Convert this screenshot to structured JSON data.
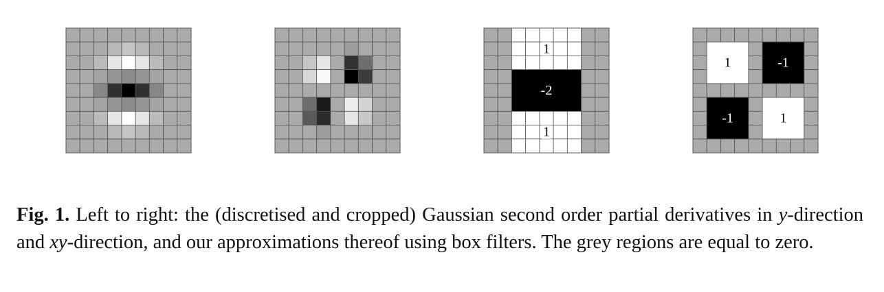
{
  "figure": {
    "panels": [
      {
        "name": "gaussian-dyy",
        "rows": 9,
        "cols": 9,
        "grid": [
          [
            "#aaaaaa",
            "#aaaaaa",
            "#aaaaaa",
            "#aaaaaa",
            "#aaaaaa",
            "#aaaaaa",
            "#aaaaaa",
            "#aaaaaa",
            "#aaaaaa"
          ],
          [
            "#aaaaaa",
            "#aaaaaa",
            "#aaaaaa",
            "#b8b8b8",
            "#c4c4c4",
            "#b8b8b8",
            "#aaaaaa",
            "#aaaaaa",
            "#aaaaaa"
          ],
          [
            "#aaaaaa",
            "#aaaaaa",
            "#bbbbbb",
            "#e6e6e6",
            "#ffffff",
            "#e6e6e6",
            "#bbbbbb",
            "#aaaaaa",
            "#aaaaaa"
          ],
          [
            "#aaaaaa",
            "#aaaaaa",
            "#a3a3a3",
            "#959595",
            "#8c8c8c",
            "#959595",
            "#a3a3a3",
            "#aaaaaa",
            "#aaaaaa"
          ],
          [
            "#aaaaaa",
            "#aaaaaa",
            "#878787",
            "#303030",
            "#000000",
            "#303030",
            "#878787",
            "#aaaaaa",
            "#aaaaaa"
          ],
          [
            "#aaaaaa",
            "#aaaaaa",
            "#a3a3a3",
            "#959595",
            "#8c8c8c",
            "#959595",
            "#a3a3a3",
            "#aaaaaa",
            "#aaaaaa"
          ],
          [
            "#aaaaaa",
            "#aaaaaa",
            "#bbbbbb",
            "#e6e6e6",
            "#ffffff",
            "#e6e6e6",
            "#bbbbbb",
            "#aaaaaa",
            "#aaaaaa"
          ],
          [
            "#aaaaaa",
            "#aaaaaa",
            "#aaaaaa",
            "#b8b8b8",
            "#c4c4c4",
            "#b8b8b8",
            "#aaaaaa",
            "#aaaaaa",
            "#aaaaaa"
          ],
          [
            "#aaaaaa",
            "#aaaaaa",
            "#aaaaaa",
            "#aaaaaa",
            "#aaaaaa",
            "#aaaaaa",
            "#aaaaaa",
            "#aaaaaa",
            "#aaaaaa"
          ]
        ],
        "blocks": []
      },
      {
        "name": "gaussian-dxy",
        "rows": 9,
        "cols": 9,
        "grid": [
          [
            "#aaaaaa",
            "#aaaaaa",
            "#aaaaaa",
            "#aaaaaa",
            "#aaaaaa",
            "#aaaaaa",
            "#aaaaaa",
            "#aaaaaa",
            "#aaaaaa"
          ],
          [
            "#aaaaaa",
            "#aaaaaa",
            "#aaaaaa",
            "#aaaaaa",
            "#aaaaaa",
            "#9c9c9c",
            "#aaaaaa",
            "#aaaaaa",
            "#aaaaaa"
          ],
          [
            "#aaaaaa",
            "#aaaaaa",
            "#c6c6c6",
            "#e6e6e6",
            "#aaaaaa",
            "#323232",
            "#6e6e6e",
            "#aaaaaa",
            "#aaaaaa"
          ],
          [
            "#aaaaaa",
            "#aaaaaa",
            "#d8d8d8",
            "#f8f8f8",
            "#aaaaaa",
            "#000000",
            "#3c3c3c",
            "#aaaaaa",
            "#aaaaaa"
          ],
          [
            "#aaaaaa",
            "#aaaaaa",
            "#aaaaaa",
            "#aaaaaa",
            "#aaaaaa",
            "#aaaaaa",
            "#aaaaaa",
            "#aaaaaa",
            "#aaaaaa"
          ],
          [
            "#aaaaaa",
            "#aaaaaa",
            "#6e6e6e",
            "#1a1a1a",
            "#aaaaaa",
            "#eeeeee",
            "#d4d4d4",
            "#aaaaaa",
            "#aaaaaa"
          ],
          [
            "#aaaaaa",
            "#aaaaaa",
            "#5a5a5a",
            "#2a2a2a",
            "#aaaaaa",
            "#e6e6e6",
            "#c8c8c8",
            "#aaaaaa",
            "#aaaaaa"
          ],
          [
            "#aaaaaa",
            "#aaaaaa",
            "#aaaaaa",
            "#9c9c9c",
            "#aaaaaa",
            "#aaaaaa",
            "#aaaaaa",
            "#aaaaaa",
            "#aaaaaa"
          ],
          [
            "#aaaaaa",
            "#aaaaaa",
            "#aaaaaa",
            "#aaaaaa",
            "#aaaaaa",
            "#aaaaaa",
            "#aaaaaa",
            "#aaaaaa",
            "#aaaaaa"
          ]
        ],
        "blocks": []
      },
      {
        "name": "box-filter-dyy",
        "rows": 9,
        "cols": 9,
        "grid": [
          [
            "#aaaaaa",
            "#aaaaaa",
            "#ffffff",
            "#ffffff",
            "#ffffff",
            "#ffffff",
            "#ffffff",
            "#aaaaaa",
            "#aaaaaa"
          ],
          [
            "#aaaaaa",
            "#aaaaaa",
            "#ffffff",
            "#ffffff",
            "#ffffff",
            "#ffffff",
            "#ffffff",
            "#aaaaaa",
            "#aaaaaa"
          ],
          [
            "#aaaaaa",
            "#aaaaaa",
            "#ffffff",
            "#ffffff",
            "#ffffff",
            "#ffffff",
            "#ffffff",
            "#aaaaaa",
            "#aaaaaa"
          ],
          [
            "#aaaaaa",
            "#aaaaaa",
            "#000000",
            "#000000",
            "#000000",
            "#000000",
            "#000000",
            "#aaaaaa",
            "#aaaaaa"
          ],
          [
            "#aaaaaa",
            "#aaaaaa",
            "#000000",
            "#000000",
            "#000000",
            "#000000",
            "#000000",
            "#aaaaaa",
            "#aaaaaa"
          ],
          [
            "#aaaaaa",
            "#aaaaaa",
            "#000000",
            "#000000",
            "#000000",
            "#000000",
            "#000000",
            "#aaaaaa",
            "#aaaaaa"
          ],
          [
            "#aaaaaa",
            "#aaaaaa",
            "#ffffff",
            "#ffffff",
            "#ffffff",
            "#ffffff",
            "#ffffff",
            "#aaaaaa",
            "#aaaaaa"
          ],
          [
            "#aaaaaa",
            "#aaaaaa",
            "#ffffff",
            "#ffffff",
            "#ffffff",
            "#ffffff",
            "#ffffff",
            "#aaaaaa",
            "#aaaaaa"
          ],
          [
            "#aaaaaa",
            "#aaaaaa",
            "#ffffff",
            "#ffffff",
            "#ffffff",
            "#ffffff",
            "#ffffff",
            "#aaaaaa",
            "#aaaaaa"
          ]
        ],
        "blocks": [
          {
            "name": "dyy-top-weight",
            "text": "1",
            "row0": 0,
            "row1": 3,
            "col0": 2,
            "col1": 7,
            "light": false,
            "grid": true
          },
          {
            "name": "dyy-middle-weight",
            "text": "-2",
            "row0": 3,
            "row1": 6,
            "col0": 2,
            "col1": 7,
            "light": true,
            "grid": false
          },
          {
            "name": "dyy-bottom-weight",
            "text": "1",
            "row0": 6,
            "row1": 9,
            "col0": 2,
            "col1": 7,
            "light": false,
            "grid": true
          }
        ]
      },
      {
        "name": "box-filter-dxy",
        "rows": 9,
        "cols": 9,
        "grid": [
          [
            "#aaaaaa",
            "#aaaaaa",
            "#aaaaaa",
            "#aaaaaa",
            "#aaaaaa",
            "#aaaaaa",
            "#aaaaaa",
            "#aaaaaa",
            "#aaaaaa"
          ],
          [
            "#aaaaaa",
            "#ffffff",
            "#ffffff",
            "#ffffff",
            "#aaaaaa",
            "#000000",
            "#000000",
            "#000000",
            "#aaaaaa"
          ],
          [
            "#aaaaaa",
            "#ffffff",
            "#ffffff",
            "#ffffff",
            "#aaaaaa",
            "#000000",
            "#000000",
            "#000000",
            "#aaaaaa"
          ],
          [
            "#aaaaaa",
            "#ffffff",
            "#ffffff",
            "#ffffff",
            "#aaaaaa",
            "#000000",
            "#000000",
            "#000000",
            "#aaaaaa"
          ],
          [
            "#aaaaaa",
            "#aaaaaa",
            "#aaaaaa",
            "#aaaaaa",
            "#aaaaaa",
            "#aaaaaa",
            "#aaaaaa",
            "#aaaaaa",
            "#aaaaaa"
          ],
          [
            "#aaaaaa",
            "#000000",
            "#000000",
            "#000000",
            "#aaaaaa",
            "#ffffff",
            "#ffffff",
            "#ffffff",
            "#aaaaaa"
          ],
          [
            "#aaaaaa",
            "#000000",
            "#000000",
            "#000000",
            "#aaaaaa",
            "#ffffff",
            "#ffffff",
            "#ffffff",
            "#aaaaaa"
          ],
          [
            "#aaaaaa",
            "#000000",
            "#000000",
            "#000000",
            "#aaaaaa",
            "#ffffff",
            "#ffffff",
            "#ffffff",
            "#aaaaaa"
          ],
          [
            "#aaaaaa",
            "#aaaaaa",
            "#aaaaaa",
            "#aaaaaa",
            "#aaaaaa",
            "#aaaaaa",
            "#aaaaaa",
            "#aaaaaa",
            "#aaaaaa"
          ]
        ],
        "blocks": [
          {
            "name": "dxy-top-left-weight",
            "text": "1",
            "row0": 1,
            "row1": 4,
            "col0": 1,
            "col1": 4,
            "light": false,
            "grid": false
          },
          {
            "name": "dxy-top-right-weight",
            "text": "-1",
            "row0": 1,
            "row1": 4,
            "col0": 5,
            "col1": 8,
            "light": true,
            "grid": false
          },
          {
            "name": "dxy-bottom-left-weight",
            "text": "-1",
            "row0": 5,
            "row1": 8,
            "col0": 1,
            "col1": 4,
            "light": true,
            "grid": false
          },
          {
            "name": "dxy-bottom-right-weight",
            "text": "1",
            "row0": 5,
            "row1": 8,
            "col0": 5,
            "col1": 8,
            "light": false,
            "grid": false
          }
        ]
      }
    ]
  },
  "caption": {
    "label": "Fig. 1.",
    "part1": "Left to right: the (discretised and cropped) Gaussian second order partial derivatives in ",
    "var_y": "y",
    "part2": "-direction and ",
    "var_xy": "xy",
    "part3": "-direction, and our approximations thereof using box filters. The grey regions are equal to zero."
  }
}
